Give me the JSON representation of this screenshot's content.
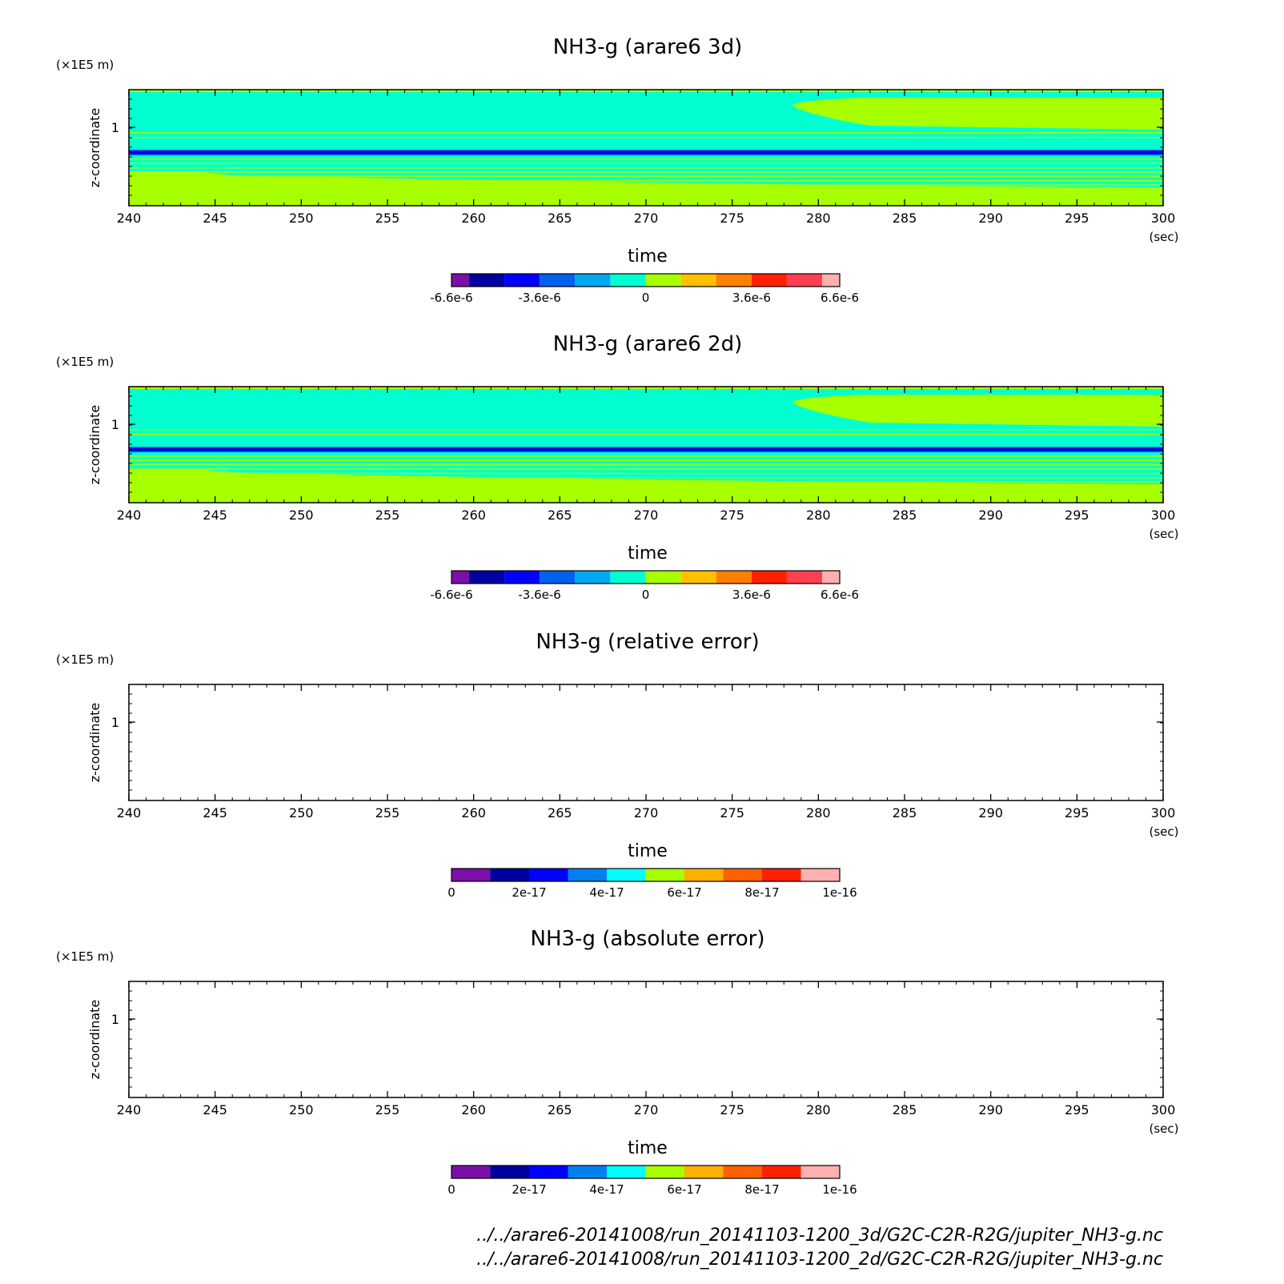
{
  "chart_data": [
    {
      "type": "heatmap",
      "title": "NH3-g (arare6 3d)",
      "xlabel": "time",
      "x_unit": "(sec)",
      "ylabel": "z-coordinate",
      "y_unit": "(×1E5 m)",
      "xlim": [
        240,
        300
      ],
      "x_ticks": [
        "240",
        "245",
        "250",
        "255",
        "260",
        "265",
        "270",
        "275",
        "280",
        "285",
        "290",
        "295",
        "300"
      ],
      "y_ticks": [
        "1"
      ],
      "colorbar": {
        "tick_labels": [
          "-6.6e-6",
          "-3.6e-6",
          "0",
          "3.6e-6",
          "6.6e-6"
        ],
        "colors": [
          "#7b0fa8",
          "#0000a0",
          "#0000ff",
          "#0060f0",
          "#00a8f0",
          "#00ffd0",
          "#a8ff00",
          "#ffc000",
          "#ff8000",
          "#ff2000",
          "#ff4050",
          "#ffb0b0"
        ]
      },
      "has_field": true
    },
    {
      "type": "heatmap",
      "title": "NH3-g (arare6 2d)",
      "xlabel": "time",
      "x_unit": "(sec)",
      "ylabel": "z-coordinate",
      "y_unit": "(×1E5 m)",
      "xlim": [
        240,
        300
      ],
      "x_ticks": [
        "240",
        "245",
        "250",
        "255",
        "260",
        "265",
        "270",
        "275",
        "280",
        "285",
        "290",
        "295",
        "300"
      ],
      "y_ticks": [
        "1"
      ],
      "colorbar": {
        "tick_labels": [
          "-6.6e-6",
          "-3.6e-6",
          "0",
          "3.6e-6",
          "6.6e-6"
        ],
        "colors": [
          "#7b0fa8",
          "#0000a0",
          "#0000ff",
          "#0060f0",
          "#00a8f0",
          "#00ffd0",
          "#a8ff00",
          "#ffc000",
          "#ff8000",
          "#ff2000",
          "#ff4050",
          "#ffb0b0"
        ]
      },
      "has_field": true
    },
    {
      "type": "heatmap",
      "title": "NH3-g (relative error)",
      "xlabel": "time",
      "x_unit": "(sec)",
      "ylabel": "z-coordinate",
      "y_unit": "(×1E5 m)",
      "xlim": [
        240,
        300
      ],
      "x_ticks": [
        "240",
        "245",
        "250",
        "255",
        "260",
        "265",
        "270",
        "275",
        "280",
        "285",
        "290",
        "295",
        "300"
      ],
      "y_ticks": [
        "1"
      ],
      "colorbar": {
        "tick_labels": [
          "0",
          "2e-17",
          "4e-17",
          "6e-17",
          "8e-17",
          "1e-16"
        ],
        "colors": [
          "#7b0fa8",
          "#0000a0",
          "#0000ff",
          "#0080f0",
          "#00ffff",
          "#a8ff00",
          "#ffb000",
          "#ff6000",
          "#ff2000",
          "#ffb0b0"
        ]
      },
      "has_field": false
    },
    {
      "type": "heatmap",
      "title": "NH3-g (absolute error)",
      "xlabel": "time",
      "x_unit": "(sec)",
      "ylabel": "z-coordinate",
      "y_unit": "(×1E5 m)",
      "xlim": [
        240,
        300
      ],
      "x_ticks": [
        "240",
        "245",
        "250",
        "255",
        "260",
        "265",
        "270",
        "275",
        "280",
        "285",
        "290",
        "295",
        "300"
      ],
      "y_ticks": [
        "1"
      ],
      "colorbar": {
        "tick_labels": [
          "0",
          "2e-17",
          "4e-17",
          "6e-17",
          "8e-17",
          "1e-16"
        ],
        "colors": [
          "#7b0fa8",
          "#0000a0",
          "#0000ff",
          "#0080f0",
          "#00ffff",
          "#a8ff00",
          "#ffb000",
          "#ff6000",
          "#ff2000",
          "#ffb0b0"
        ]
      },
      "has_field": false
    }
  ],
  "footer": {
    "lines": [
      "../../arare6-20141008/run_20141103-1200_3d/G2C-C2R-R2G/jupiter_NH3-g.nc",
      "../../arare6-20141008/run_20141103-1200_2d/G2C-C2R-R2G/jupiter_NH3-g.nc"
    ]
  },
  "field_colors": {
    "base": "#00ffd0",
    "positive": "#a8ff00",
    "band": "#0000d0",
    "band_edge": "#0060f0"
  }
}
